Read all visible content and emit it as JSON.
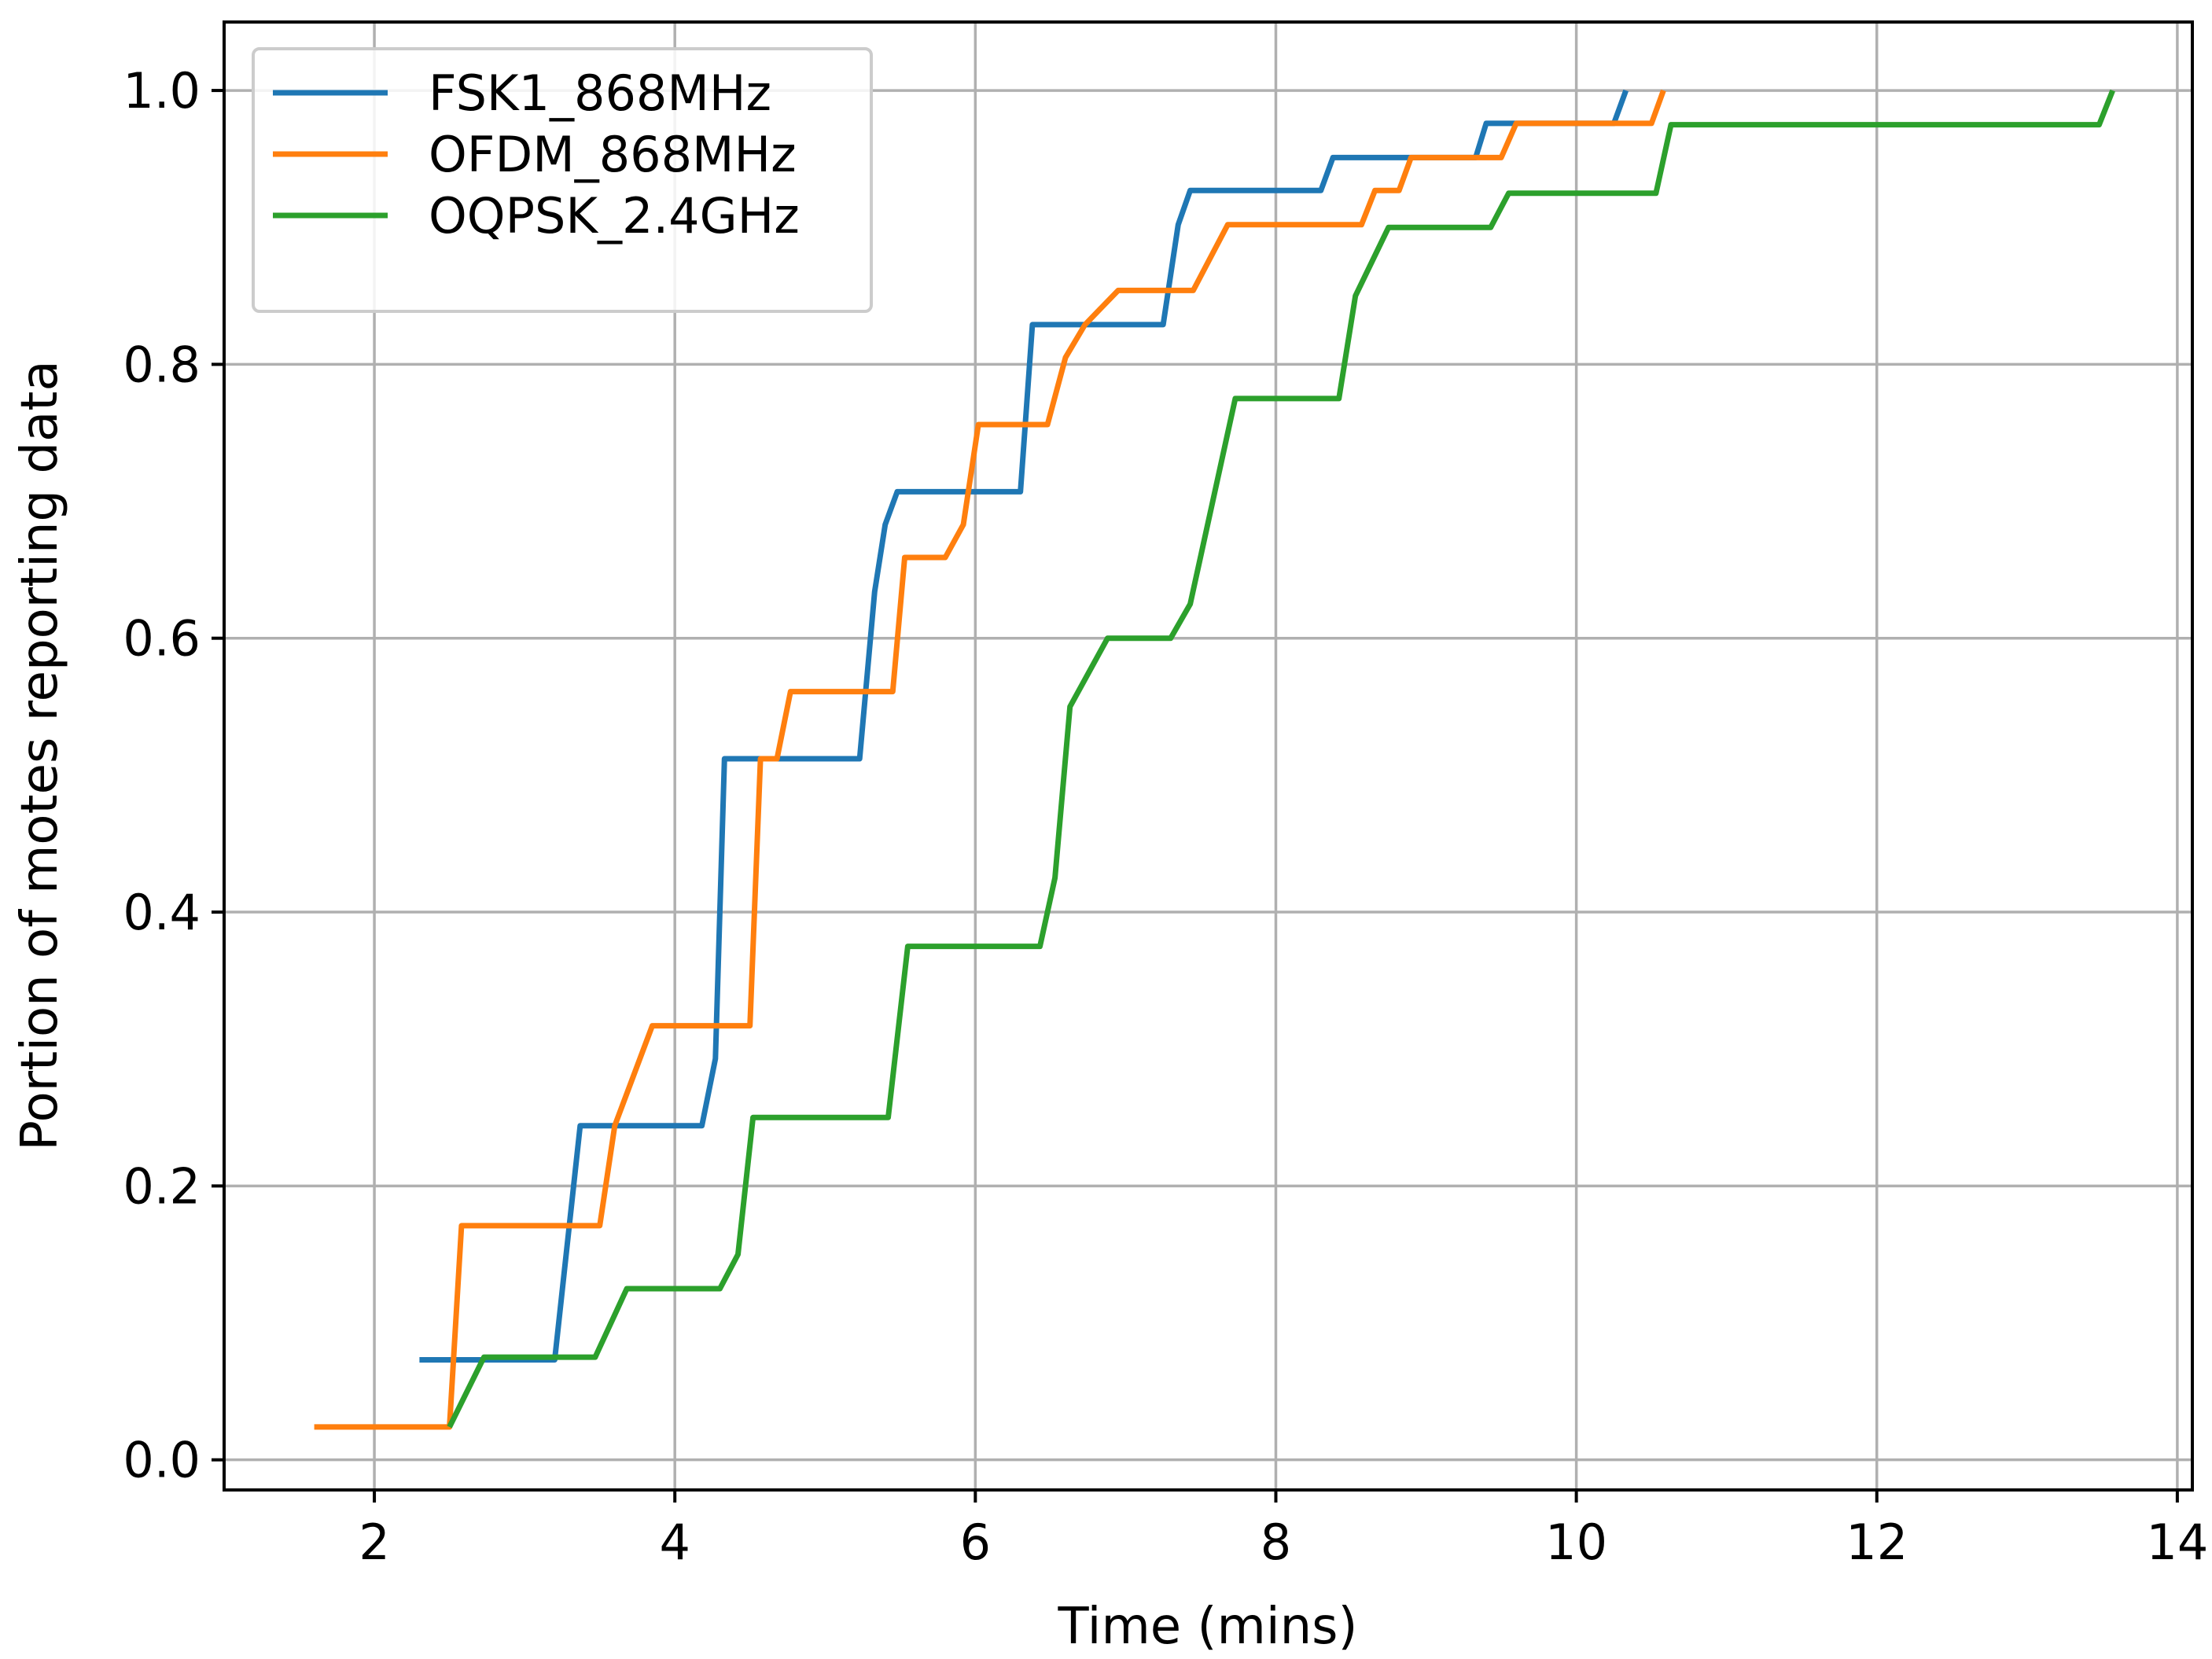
{
  "chart_data": {
    "type": "line",
    "xlabel": "Time (mins)",
    "ylabel": "Portion of motes reporting data",
    "xlim": [
      1.0,
      14.1
    ],
    "ylim": [
      -0.022,
      1.05
    ],
    "xticks": [
      2,
      4,
      6,
      8,
      10,
      12,
      14
    ],
    "yticks": [
      0.0,
      0.2,
      0.4,
      0.6,
      0.8,
      1.0
    ],
    "xtick_labels": [
      "2",
      "4",
      "6",
      "8",
      "10",
      "12",
      "14"
    ],
    "ytick_labels": [
      "0.0",
      "0.2",
      "0.4",
      "0.6",
      "0.8",
      "1.0"
    ],
    "grid": true,
    "legend_position": "top-left",
    "series": [
      {
        "name": "FSK1_868MHz",
        "color": "#1f77b4",
        "points": [
          [
            2.3,
            0.073
          ],
          [
            3.2,
            0.073
          ],
          [
            3.37,
            0.244
          ],
          [
            4.18,
            0.244
          ],
          [
            4.27,
            0.293
          ],
          [
            4.33,
            0.512
          ],
          [
            5.23,
            0.512
          ],
          [
            5.33,
            0.634
          ],
          [
            5.4,
            0.683
          ],
          [
            5.48,
            0.707
          ],
          [
            6.3,
            0.707
          ],
          [
            6.38,
            0.829
          ],
          [
            7.25,
            0.829
          ],
          [
            7.35,
            0.902
          ],
          [
            7.43,
            0.927
          ],
          [
            8.3,
            0.927
          ],
          [
            8.38,
            0.951
          ],
          [
            9.33,
            0.951
          ],
          [
            9.4,
            0.976
          ],
          [
            10.25,
            0.976
          ],
          [
            10.33,
            1.0
          ]
        ]
      },
      {
        "name": "OFDM_868MHz",
        "color": "#ff7f0e",
        "points": [
          [
            1.6,
            0.024
          ],
          [
            2.5,
            0.024
          ],
          [
            2.58,
            0.171
          ],
          [
            3.5,
            0.171
          ],
          [
            3.6,
            0.244
          ],
          [
            3.85,
            0.317
          ],
          [
            4.5,
            0.317
          ],
          [
            4.57,
            0.512
          ],
          [
            4.68,
            0.512
          ],
          [
            4.77,
            0.561
          ],
          [
            5.45,
            0.561
          ],
          [
            5.53,
            0.659
          ],
          [
            5.8,
            0.659
          ],
          [
            5.92,
            0.683
          ],
          [
            6.02,
            0.756
          ],
          [
            6.48,
            0.756
          ],
          [
            6.6,
            0.805
          ],
          [
            6.73,
            0.829
          ],
          [
            6.95,
            0.854
          ],
          [
            7.45,
            0.854
          ],
          [
            7.68,
            0.902
          ],
          [
            8.57,
            0.902
          ],
          [
            8.66,
            0.927
          ],
          [
            8.82,
            0.927
          ],
          [
            8.9,
            0.951
          ],
          [
            9.5,
            0.951
          ],
          [
            9.6,
            0.976
          ],
          [
            10.5,
            0.976
          ],
          [
            10.58,
            1.0
          ]
        ]
      },
      {
        "name": "OQPSK_2.4GHz",
        "color": "#2ca02c",
        "points": [
          [
            2.5,
            0.024
          ],
          [
            2.73,
            0.075
          ],
          [
            3.47,
            0.075
          ],
          [
            3.68,
            0.125
          ],
          [
            4.3,
            0.125
          ],
          [
            4.42,
            0.15
          ],
          [
            4.52,
            0.25
          ],
          [
            5.42,
            0.25
          ],
          [
            5.55,
            0.375
          ],
          [
            6.43,
            0.375
          ],
          [
            6.53,
            0.425
          ],
          [
            6.63,
            0.55
          ],
          [
            6.88,
            0.6
          ],
          [
            7.3,
            0.6
          ],
          [
            7.43,
            0.625
          ],
          [
            7.73,
            0.775
          ],
          [
            8.42,
            0.775
          ],
          [
            8.53,
            0.85
          ],
          [
            8.75,
            0.9
          ],
          [
            9.43,
            0.9
          ],
          [
            9.55,
            0.925
          ],
          [
            10.53,
            0.925
          ],
          [
            10.63,
            0.975
          ],
          [
            13.48,
            0.975
          ],
          [
            13.57,
            1.0
          ]
        ]
      }
    ]
  }
}
